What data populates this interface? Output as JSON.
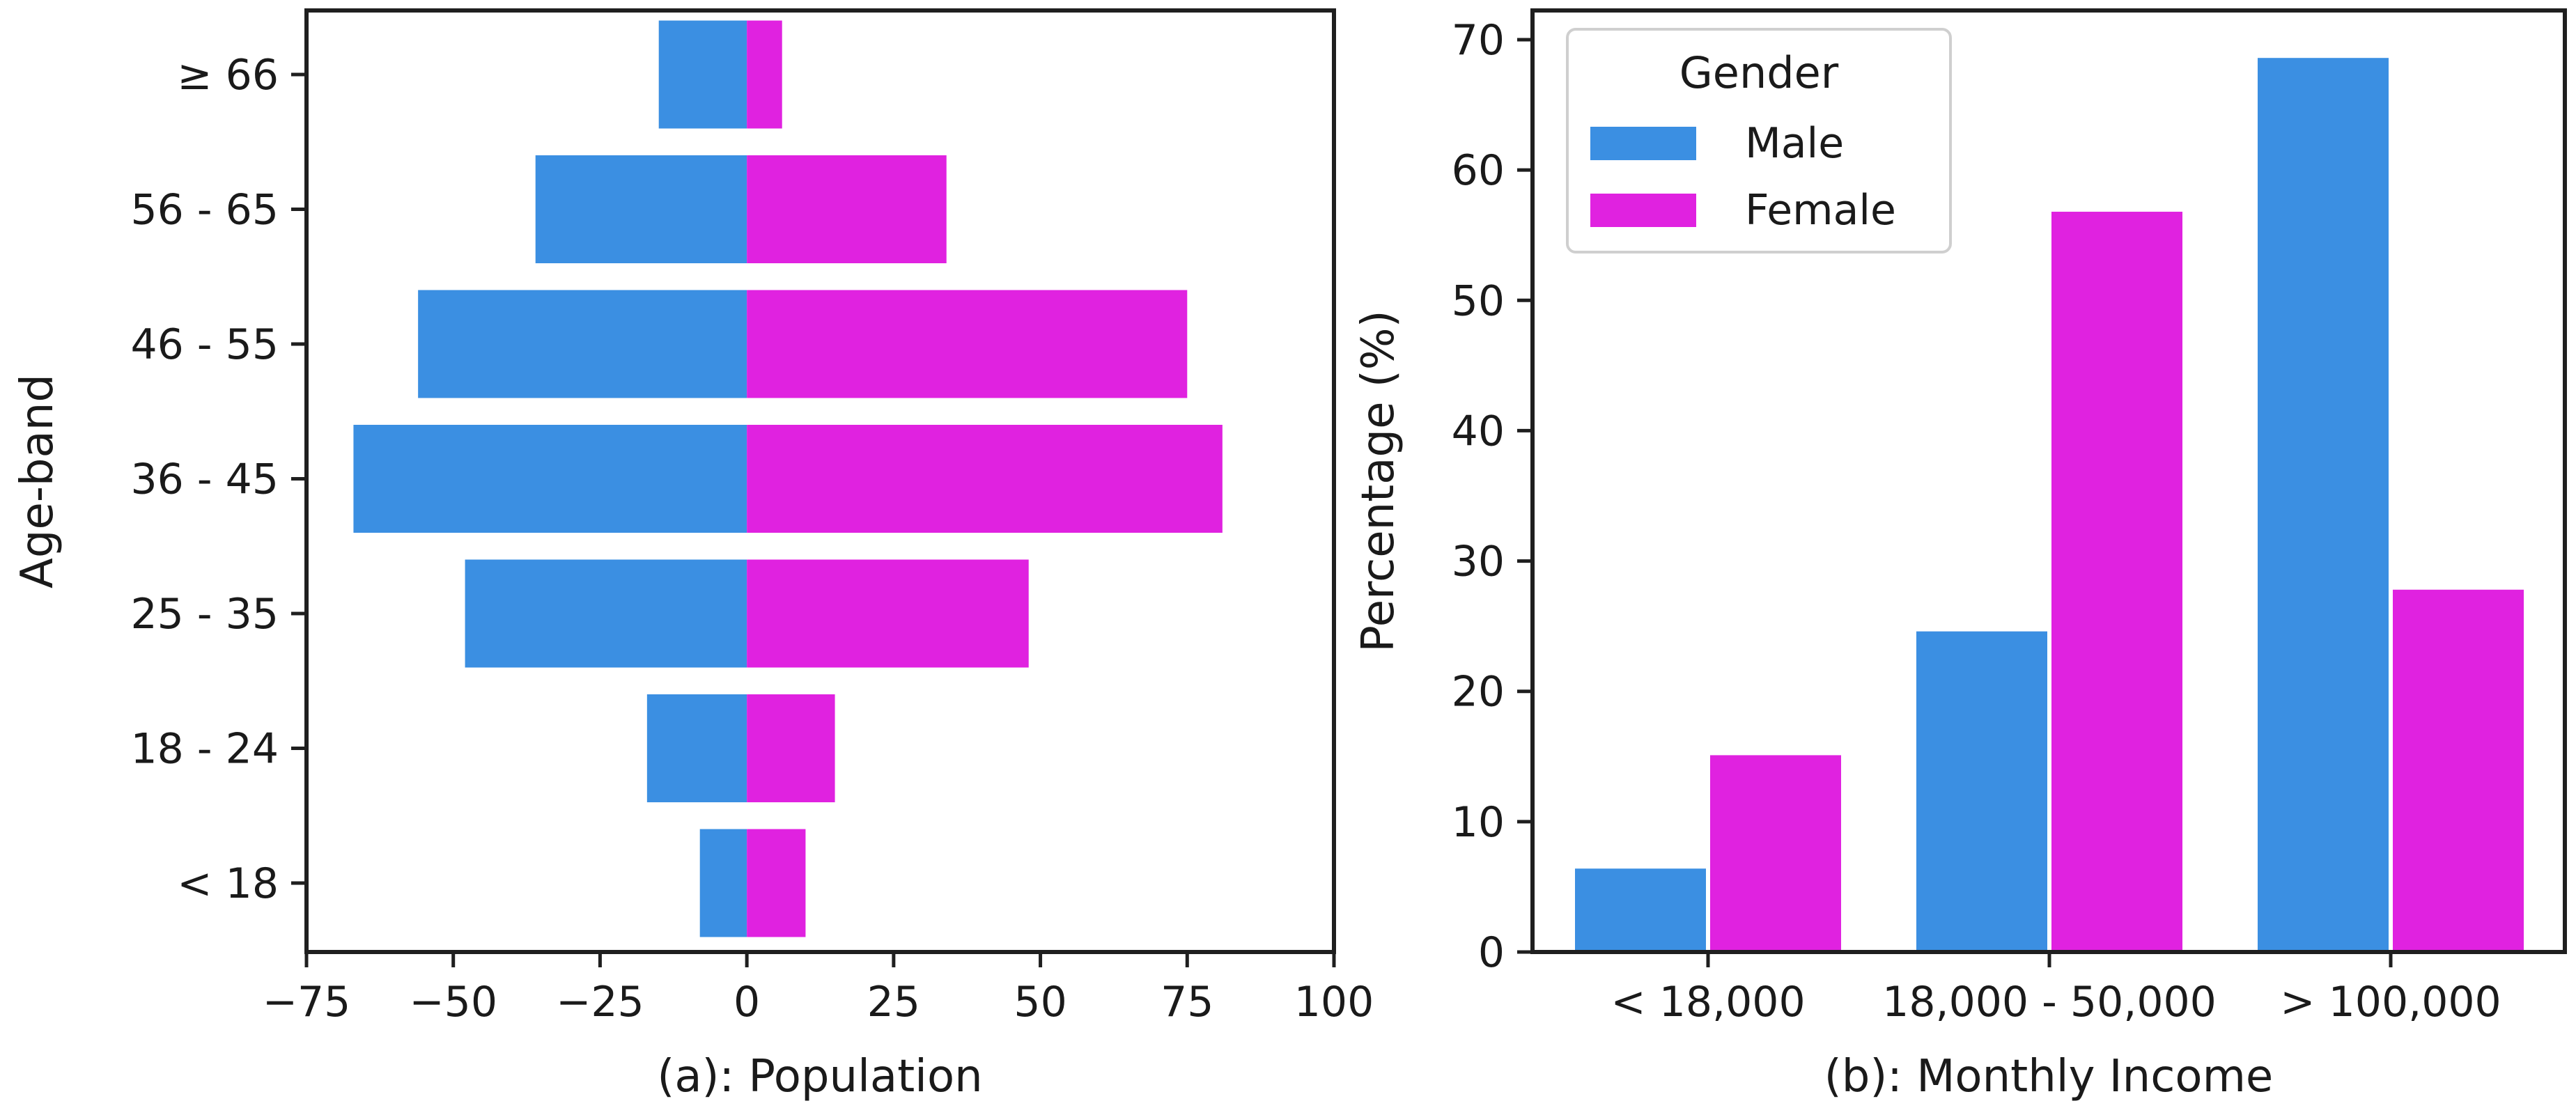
{
  "colors": {
    "male": "#3b8fe2",
    "female": "#e022e0"
  },
  "chart_data": [
    {
      "type": "bar",
      "orientation": "horizontal",
      "xlabel": "(a): Population",
      "ylabel": "Age-band",
      "xlim": [
        -75,
        100
      ],
      "xticks": [
        -75,
        -50,
        -25,
        0,
        25,
        50,
        75,
        100
      ],
      "xtick_labels": [
        "−75",
        "−50",
        "−25",
        "0",
        "25",
        "50",
        "75",
        "100"
      ],
      "categories": [
        "< 18",
        "18 - 24",
        "25 - 35",
        "36 - 45",
        "46 - 55",
        "56 - 65",
        "≥ 66"
      ],
      "series": [
        {
          "name": "Male",
          "values": [
            -8,
            -17,
            -48,
            -67,
            -56,
            -36,
            -15
          ]
        },
        {
          "name": "Female",
          "values": [
            10,
            15,
            48,
            81,
            75,
            34,
            6
          ]
        }
      ]
    },
    {
      "type": "bar",
      "xlabel": "(b): Monthly Income",
      "ylabel": "Percentage (%)",
      "ylim": [
        0,
        70
      ],
      "yticks": [
        0,
        10,
        20,
        30,
        40,
        50,
        60,
        70
      ],
      "categories": [
        "< 18,000",
        "18,000 - 50,000",
        "> 100,000"
      ],
      "series": [
        {
          "name": "Male",
          "values": [
            6.4,
            24.6,
            68.6
          ]
        },
        {
          "name": "Female",
          "values": [
            15.1,
            56.8,
            27.8
          ]
        }
      ],
      "legend": {
        "title": "Gender",
        "placement": "top-left",
        "entries": [
          "Male",
          "Female"
        ]
      }
    }
  ]
}
